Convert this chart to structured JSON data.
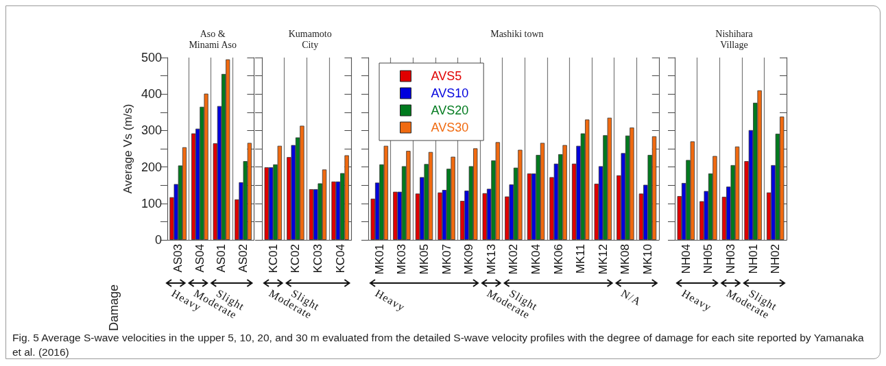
{
  "chart_data": [
    {
      "type": "bar",
      "title": "Aso &\nMinami Aso",
      "ylabel": "Average Vs (m/s)",
      "categories": [
        "AS03",
        "AS04",
        "AS01",
        "AS02"
      ],
      "series": [
        {
          "color": "#e00000",
          "values": [
            117,
            292,
            265,
            111
          ]
        },
        {
          "color": "#0000dd",
          "values": [
            153,
            305,
            367,
            158
          ]
        },
        {
          "color": "#007a1e",
          "values": [
            204,
            365,
            455,
            216
          ]
        },
        {
          "color": "#f06a10",
          "values": [
            254,
            401,
            495,
            266
          ]
        }
      ],
      "ylim": [
        0,
        500
      ],
      "yticks": [
        0,
        {
          "value": 50,
          "label": null
        },
        100,
        {
          "value": 150,
          "label": null
        },
        200,
        {
          "value": 250,
          "label": null
        },
        300,
        {
          "value": 350,
          "label": null
        },
        400,
        {
          "value": 450,
          "label": null
        },
        500
      ],
      "grid": "x",
      "legend": false,
      "annotations": [
        "Heavy",
        "Moderate",
        "Slight",
        "Damage",
        "Fig. 5  Average S-wave velocities in the upper 5, 10, 20, and 30 m evaluated from the detailed S-wave velocity profiles with the degree of damage for each site reported by Yamanaka et al. (2016)"
      ]
    },
    {
      "type": "bar",
      "title": "Kumamoto\nCity",
      "categories": [
        "KC01",
        "KC02",
        "KC03",
        "KC04"
      ],
      "series": [
        {
          "color": "#e00000",
          "values": [
            199,
            227,
            139,
            160
          ]
        },
        {
          "color": "#0000dd",
          "values": [
            199,
            260,
            139,
            160
          ]
        },
        {
          "color": "#007a1e",
          "values": [
            207,
            281,
            155,
            183
          ]
        },
        {
          "color": "#f06a10",
          "values": [
            258,
            313,
            193,
            232
          ]
        }
      ],
      "ylim": [
        0,
        500
      ],
      "yticks": [
        0,
        {
          "value": 50,
          "label": null
        },
        100,
        {
          "value": 150,
          "label": null
        },
        200,
        {
          "value": 250,
          "label": null
        },
        300,
        {
          "value": 350,
          "label": null
        },
        400,
        {
          "value": 450,
          "label": null
        },
        500
      ],
      "grid": "x",
      "legend": false,
      "tick_labels": "x",
      "annotations": [
        "Moderate",
        "Slight"
      ]
    },
    {
      "type": "bar",
      "title": "Mashiki town",
      "categories": [
        "MK01",
        "MK03",
        "MK05",
        "MK07",
        "MK09",
        "MK13",
        "MK02",
        "MK04",
        "MK06",
        "MK11",
        "MK12",
        "MK08",
        "MK10"
      ],
      "series": [
        {
          "name": "AVS5",
          "color": "#e00000",
          "values": [
            113,
            132,
            127,
            130,
            107,
            128,
            119,
            182,
            172,
            209,
            154,
            177,
            127
          ]
        },
        {
          "name": "AVS10",
          "color": "#0000dd",
          "values": [
            157,
            132,
            172,
            137,
            135,
            140,
            152,
            182,
            209,
            258,
            202,
            238,
            151
          ]
        },
        {
          "name": "AVS20",
          "color": "#007a1e",
          "values": [
            207,
            202,
            208,
            195,
            202,
            218,
            198,
            233,
            235,
            292,
            287,
            286,
            233
          ]
        },
        {
          "name": "AVS30",
          "color": "#f06a10",
          "values": [
            258,
            244,
            241,
            228,
            251,
            268,
            247,
            266,
            260,
            330,
            335,
            308,
            284
          ]
        }
      ],
      "ylim": [
        0,
        500
      ],
      "yticks": [
        0,
        {
          "value": 50,
          "label": null
        },
        100,
        {
          "value": 150,
          "label": null
        },
        200,
        {
          "value": 250,
          "label": null
        },
        300,
        {
          "value": 350,
          "label": null
        },
        400,
        {
          "value": 450,
          "label": null
        },
        500
      ],
      "grid": "x",
      "legend": "top left",
      "tick_labels": "x",
      "annotations": [
        "Heavy",
        "Moderate",
        "Slight",
        "N/A"
      ]
    },
    {
      "type": "bar",
      "title": "Nishihara\nVillage",
      "categories": [
        "NH04",
        "NH05",
        "NH03",
        "NH01",
        "NH02"
      ],
      "series": [
        {
          "color": "#e00000",
          "values": [
            120,
            106,
            118,
            216,
            130
          ]
        },
        {
          "color": "#0000dd",
          "values": [
            156,
            134,
            146,
            301,
            205
          ]
        },
        {
          "color": "#007a1e",
          "values": [
            219,
            182,
            205,
            376,
            291
          ]
        },
        {
          "color": "#f06a10",
          "values": [
            270,
            230,
            256,
            410,
            338
          ]
        }
      ],
      "ylim": [
        0,
        500
      ],
      "yticks": [
        0,
        {
          "value": 50,
          "label": null
        },
        100,
        {
          "value": 150,
          "label": null
        },
        200,
        {
          "value": 250,
          "label": null
        },
        300,
        {
          "value": 350,
          "label": null
        },
        400,
        {
          "value": 450,
          "label": null
        },
        500
      ],
      "grid": "x",
      "legend": false,
      "tick_labels": "x",
      "annotations": [
        "Heavy",
        "Moderate",
        "Slight"
      ]
    }
  ]
}
